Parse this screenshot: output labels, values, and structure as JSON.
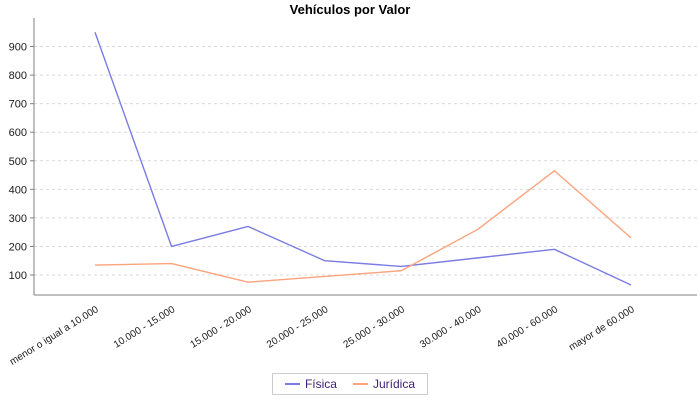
{
  "chart_data": {
    "type": "line",
    "title": "Vehículos por Valor",
    "xlabel": "",
    "ylabel": "",
    "categories": [
      "menor o igual a 10.000",
      "10.000 - 15.000",
      "15.000 - 20.000",
      "20.000 - 25.000",
      "25.000 - 30.000",
      "30.000 - 40.000",
      "40.000 - 60.000",
      "mayor de 60.000"
    ],
    "series": [
      {
        "name": "Física",
        "color": "#7b7be4",
        "values": [
          950,
          200,
          270,
          150,
          130,
          160,
          190,
          65
        ]
      },
      {
        "name": "Jurídica",
        "color": "#fba37d",
        "values": [
          135,
          140,
          75,
          95,
          115,
          260,
          465,
          230
        ]
      }
    ],
    "y_ticks": [
      100,
      200,
      300,
      400,
      500,
      600,
      700,
      800,
      900
    ],
    "ylim": [
      30,
      1000
    ],
    "grid": "horizontal-dashed",
    "legend_position": "bottom",
    "colors": {
      "gridline": "#d9d9d9",
      "axis_line": "#808080",
      "tick_label": "#1a1a1a",
      "legend_text": "#40207a",
      "legend_border": "#cccccc"
    }
  }
}
